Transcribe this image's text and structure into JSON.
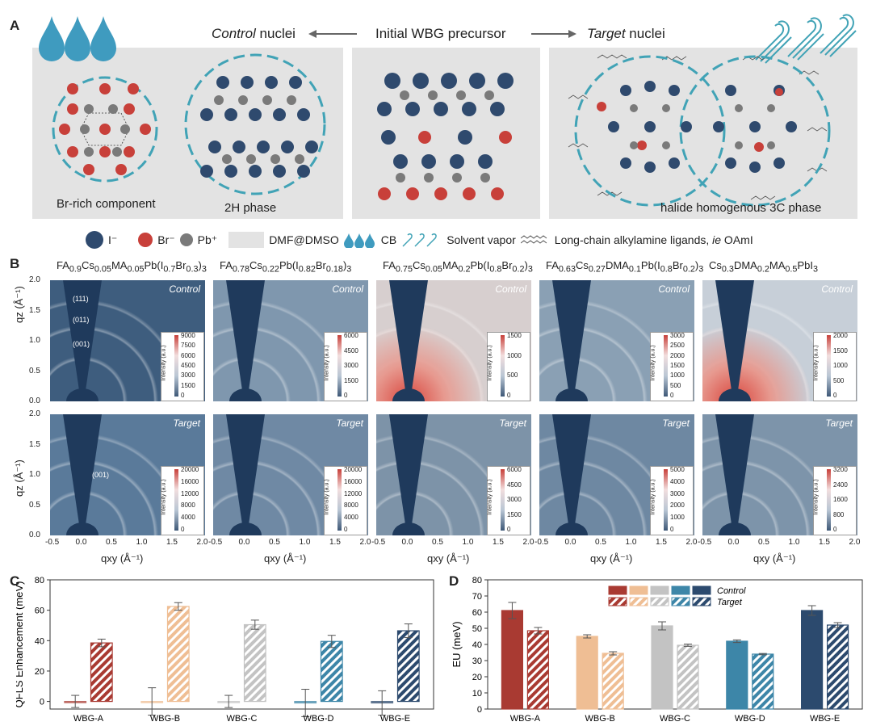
{
  "panel_a": {
    "letter": "A",
    "title_left_em": "Control",
    "title_left_rest": " nuclei",
    "title_center": "Initial WBG precursor",
    "title_right_em": "Target",
    "title_right_rest": " nuclei",
    "labels": {
      "br_rich": "Br-rich component",
      "h2_phase": "2H phase",
      "c3_phase": "halide homogenous 3C phase"
    },
    "legend": {
      "iodide": "I⁻",
      "bromide": "Br⁻",
      "lead": "Pb⁺",
      "solvent": "DMF@DMSO",
      "cb": "CB",
      "vapor": "Solvent vapor",
      "ligand_pre": "Long-chain alkylamine ligands, ",
      "ligand_ie": "ie",
      "ligand_post": " OAmI"
    },
    "colors": {
      "iodide": "#2f4a6e",
      "bromide": "#c8403a",
      "lead": "#7a7a7a",
      "drop": "#3f9bbf",
      "dash": "#41a3b6"
    }
  },
  "panel_b": {
    "letter": "B",
    "columns": [
      {
        "title": "FA0.9Cs0.05MA0.05Pb(I0.7Br0.3)3",
        "control_ticks": [
          "9000",
          "7500",
          "6000",
          "4500",
          "3000",
          "1500",
          "0"
        ],
        "target_ticks": [
          "20000",
          "16000",
          "12000",
          "8000",
          "4000",
          "0"
        ]
      },
      {
        "title": "FA0.78Cs0.22Pb(I0.82Br0.18)3",
        "control_ticks": [
          "6000",
          "4500",
          "3000",
          "1500",
          "0"
        ],
        "target_ticks": [
          "20000",
          "16000",
          "12000",
          "8000",
          "4000",
          "0"
        ]
      },
      {
        "title": "FA0.75Cs0.05MA0.2Pb(I0.8Br0.2)3",
        "control_ticks": [
          "1500",
          "1000",
          "500",
          "0"
        ],
        "target_ticks": [
          "6000",
          "4500",
          "3000",
          "1500",
          "0"
        ]
      },
      {
        "title": "FA0.63Cs0.27DMA0.1Pb(I0.8Br0.2)3",
        "control_ticks": [
          "3000",
          "2500",
          "2000",
          "1500",
          "1000",
          "500",
          "0"
        ],
        "target_ticks": [
          "5000",
          "4000",
          "3000",
          "2000",
          "1000",
          "0"
        ]
      },
      {
        "title": "Cs0.3DMA0.2MA0.5PbI3",
        "control_ticks": [
          "2000",
          "1500",
          "1000",
          "500",
          "0"
        ],
        "target_ticks": [
          "3200",
          "2400",
          "1600",
          "800",
          "0"
        ]
      }
    ],
    "row_control": "Control",
    "row_target": "Target",
    "colorbar_label": "Intensity (a.u.)",
    "ylabel": "qz (Å⁻¹)",
    "xlabel": "qxy (Å⁻¹)",
    "y_ticks": [
      "2.0",
      "1.5",
      "1.0",
      "0.5",
      "0.0"
    ],
    "x_ticks": [
      "-0.5",
      "0.0",
      "0.5",
      "1.0",
      "1.5",
      "2.0"
    ],
    "peaks_control": [
      "(111)",
      "(011)",
      "(001)"
    ],
    "peak_target": "(001)"
  },
  "chart_data": [
    {
      "type": "bar",
      "panel": "C",
      "ylabel": "QFLS Enhancement (meV)",
      "ylim": [
        -5,
        80
      ],
      "yticks": [
        0,
        20,
        40,
        60,
        80
      ],
      "categories": [
        "WBG-A",
        "WBG-B",
        "WBG-C",
        "WBG-D",
        "WBG-E"
      ],
      "series": [
        {
          "name": "Control",
          "values": [
            0,
            0,
            0,
            -1,
            -1
          ],
          "errors": [
            4,
            9,
            4,
            9,
            8
          ]
        },
        {
          "name": "Target",
          "values": [
            38.5,
            62.5,
            50.5,
            39.5,
            46.5
          ],
          "errors": [
            2.5,
            2.5,
            3,
            4,
            4.5
          ]
        }
      ],
      "colors": [
        "#a93a32",
        "#efbe94",
        "#c3c3c3",
        "#3d86a8",
        "#2c4a6e"
      ]
    },
    {
      "type": "bar",
      "panel": "D",
      "ylabel": "EU (meV)",
      "ylim": [
        0,
        80
      ],
      "yticks": [
        0,
        10,
        20,
        30,
        40,
        50,
        60,
        70,
        80
      ],
      "categories": [
        "WBG-A",
        "WBG-B",
        "WBG-C",
        "WBG-D",
        "WBG-E"
      ],
      "series": [
        {
          "name": "Control",
          "values": [
            61,
            45,
            51.5,
            42,
            61
          ],
          "errors": [
            5,
            1,
            2.5,
            0.8,
            3
          ]
        },
        {
          "name": "Target",
          "values": [
            48.5,
            34.5,
            39.5,
            34,
            52
          ],
          "errors": [
            2,
            1,
            0.7,
            0.4,
            1.5
          ]
        }
      ],
      "colors": [
        "#a93a32",
        "#efbe94",
        "#c3c3c3",
        "#3d86a8",
        "#2c4a6e"
      ],
      "legend": [
        "Control",
        "Target"
      ]
    }
  ]
}
